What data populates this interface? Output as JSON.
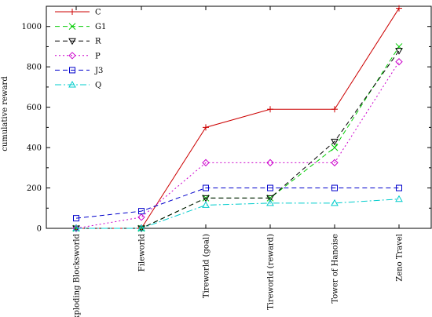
{
  "chart_data": {
    "type": "line",
    "title": "",
    "xlabel": "",
    "ylabel": "cumulative reward",
    "ylim": [
      0,
      1100
    ],
    "yticks": [
      0,
      200,
      400,
      600,
      800,
      1000
    ],
    "grid": false,
    "legend_position": "top-left",
    "categories": [
      "Exploding Blocksworld",
      "Fileworld",
      "Tireworld (goal)",
      "Tireworld (reward)",
      "Tower of Hanoise",
      "Zeno Travel"
    ],
    "series": [
      {
        "name": "C",
        "color": "#cc0000",
        "dash": "solid",
        "marker": "plus",
        "values": [
          0,
          0,
          500,
          590,
          590,
          1090
        ]
      },
      {
        "name": "G1",
        "color": "#00cc00",
        "dash": "dashed",
        "marker": "x",
        "values": [
          0,
          0,
          150,
          150,
          400,
          900
        ]
      },
      {
        "name": "R",
        "color": "#000000",
        "dash": "dashed",
        "marker": "triangle-down",
        "values": [
          0,
          0,
          150,
          150,
          430,
          880
        ]
      },
      {
        "name": "P",
        "color": "#cc00cc",
        "dash": "dotted",
        "marker": "diamond",
        "values": [
          0,
          55,
          325,
          325,
          325,
          825
        ]
      },
      {
        "name": "J3",
        "color": "#0000cc",
        "dash": "dashed",
        "marker": "square",
        "values": [
          50,
          85,
          200,
          200,
          200,
          200
        ]
      },
      {
        "name": "Q",
        "color": "#00cccc",
        "dash": "dashdot",
        "marker": "triangle-up",
        "values": [
          0,
          0,
          115,
          125,
          125,
          145
        ]
      }
    ]
  }
}
